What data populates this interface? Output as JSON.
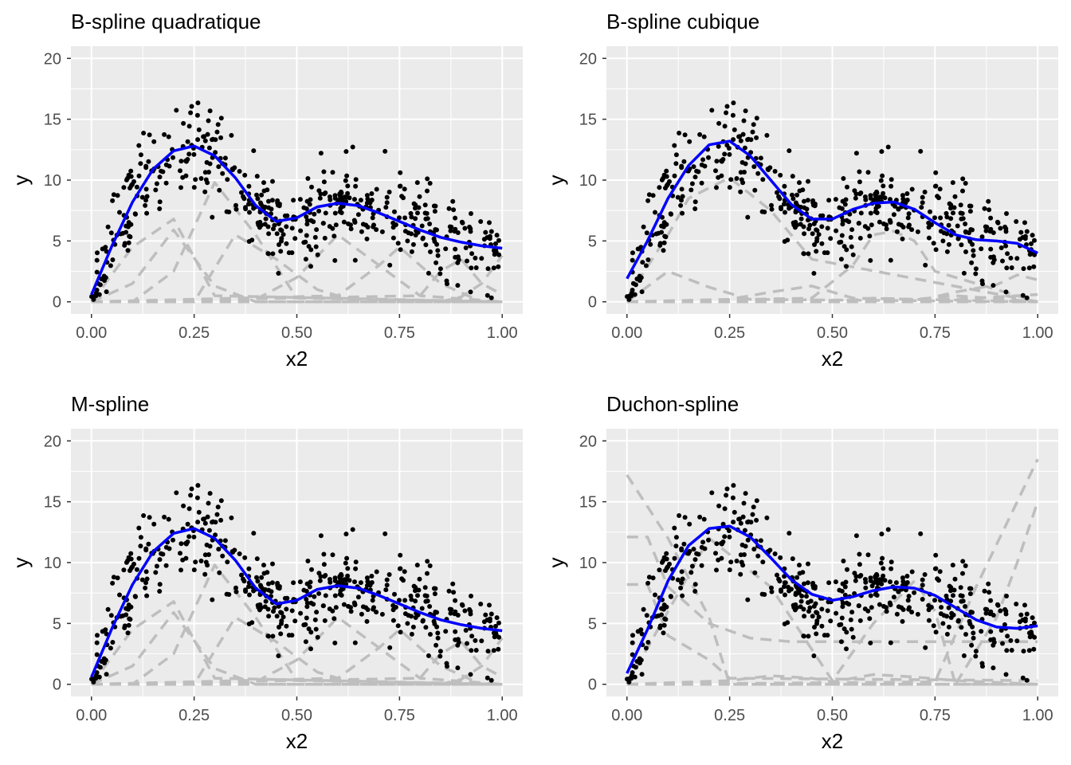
{
  "figure": {
    "layout": "2x2 facet grid"
  },
  "style": {
    "panel_background": "#ebebeb",
    "grid_color": "#ffffff",
    "point_color": "#000000",
    "fit_color": "#0000ff",
    "basis_color": "#bebebe",
    "tick_text_color": "#4d4d4d"
  },
  "chart_data": [
    {
      "type": "scatter",
      "title": "B-spline quadratique",
      "xlabel": "x2",
      "ylabel": "y",
      "xlim": [
        0,
        1
      ],
      "ylim": [
        0,
        20
      ],
      "x_ticks": [
        "0.00",
        "0.25",
        "0.50",
        "0.75",
        "1.00"
      ],
      "y_ticks": [
        "0",
        "5",
        "10",
        "15",
        "20"
      ],
      "grid": true,
      "fit": {
        "x": [
          0,
          0.05,
          0.1,
          0.15,
          0.2,
          0.25,
          0.3,
          0.35,
          0.4,
          0.45,
          0.5,
          0.55,
          0.6,
          0.65,
          0.7,
          0.75,
          0.8,
          0.85,
          0.9,
          0.95,
          1.0
        ],
        "y": [
          0.6,
          4.6,
          8.2,
          10.9,
          12.4,
          12.8,
          12.0,
          10.2,
          7.9,
          6.6,
          6.9,
          7.8,
          8.1,
          7.9,
          7.3,
          6.6,
          5.9,
          5.3,
          4.9,
          4.6,
          4.4
        ]
      },
      "basis": [
        {
          "x": [
            0,
            0.1,
            0.2,
            0.3,
            1.0
          ],
          "y": [
            0,
            4.5,
            6.8,
            0.5,
            0
          ]
        },
        {
          "x": [
            0,
            0.1,
            0.2,
            0.3,
            0.4,
            1.0
          ],
          "y": [
            0,
            1.5,
            5.9,
            1.3,
            0,
            0
          ]
        },
        {
          "x": [
            0,
            0.1,
            0.2,
            0.3,
            0.4,
            0.5,
            1.0
          ],
          "y": [
            0,
            0,
            2.5,
            9.8,
            5.5,
            0.3,
            0
          ]
        },
        {
          "x": [
            0,
            0.25,
            0.35,
            0.45,
            0.55,
            0.65,
            1.0
          ],
          "y": [
            0,
            0,
            5.5,
            3.5,
            1.0,
            0,
            0
          ]
        },
        {
          "x": [
            0,
            0.4,
            0.5,
            0.6,
            0.7,
            0.8,
            1.0
          ],
          "y": [
            0,
            0.2,
            2.0,
            5.5,
            3.0,
            0.5,
            0
          ]
        },
        {
          "x": [
            0,
            0.6,
            0.7,
            0.75,
            0.85,
            0.95,
            1.0
          ],
          "y": [
            0,
            0.5,
            3.0,
            4.5,
            1.5,
            0,
            0
          ]
        },
        {
          "x": [
            0,
            0.8,
            0.85,
            0.9,
            0.95,
            1.0
          ],
          "y": [
            0,
            0.5,
            2.5,
            3.5,
            1.5,
            0.6
          ]
        },
        {
          "x": [
            0,
            0.85,
            0.9,
            0.95,
            1.0
          ],
          "y": [
            0,
            0,
            0.4,
            1.5,
            3.8
          ]
        },
        {
          "x": [
            0,
            0.5,
            1.0
          ],
          "y": [
            0,
            0,
            0
          ]
        }
      ]
    },
    {
      "type": "scatter",
      "title": "B-spline cubique",
      "xlabel": "x2",
      "ylabel": "y",
      "xlim": [
        0,
        1
      ],
      "ylim": [
        0,
        20
      ],
      "x_ticks": [
        "0.00",
        "0.25",
        "0.50",
        "0.75",
        "1.00"
      ],
      "y_ticks": [
        "0",
        "5",
        "10",
        "15",
        "20"
      ],
      "grid": true,
      "fit": {
        "x": [
          0,
          0.05,
          0.1,
          0.15,
          0.2,
          0.25,
          0.3,
          0.35,
          0.4,
          0.45,
          0.5,
          0.55,
          0.6,
          0.65,
          0.7,
          0.75,
          0.8,
          0.85,
          0.9,
          0.95,
          1.0
        ],
        "y": [
          1.9,
          5.0,
          8.5,
          11.2,
          12.9,
          13.2,
          12.0,
          10.0,
          8.0,
          6.8,
          6.8,
          7.6,
          8.1,
          8.2,
          7.6,
          6.5,
          5.5,
          5.1,
          5.0,
          4.8,
          4.0
        ]
      },
      "basis": [
        {
          "x": [
            0,
            0.1,
            0.2,
            0.3,
            1.0
          ],
          "y": [
            0,
            2.5,
            1.2,
            0.2,
            0
          ]
        },
        {
          "x": [
            0,
            0.1,
            0.15,
            0.25,
            0.35,
            0.45,
            1.0
          ],
          "y": [
            0.3,
            5.5,
            8.5,
            10.2,
            7.5,
            3.5,
            0
          ]
        },
        {
          "x": [
            0,
            0.25,
            0.35,
            0.45,
            0.55,
            1.0
          ],
          "y": [
            0,
            0.2,
            0.8,
            1.3,
            0.3,
            0
          ]
        },
        {
          "x": [
            0,
            0.45,
            0.55,
            0.6,
            0.65,
            0.7,
            0.75,
            1.0
          ],
          "y": [
            0,
            0.3,
            3.0,
            5.5,
            5.8,
            5.0,
            2.5,
            0
          ]
        },
        {
          "x": [
            0,
            0.5,
            0.6,
            0.7,
            0.8,
            1.0
          ],
          "y": [
            0,
            0,
            0.3,
            0.2,
            0.5,
            0
          ]
        },
        {
          "x": [
            0,
            0.7,
            0.8,
            0.9,
            0.95,
            1.0
          ],
          "y": [
            0,
            0,
            0.8,
            1.4,
            2.2,
            1.8
          ]
        },
        {
          "x": [
            0,
            0.8,
            0.9,
            1.0
          ],
          "y": [
            0,
            0.2,
            0.4,
            0.6
          ]
        },
        {
          "x": [
            0,
            0.5,
            1.0
          ],
          "y": [
            0,
            0,
            0
          ]
        }
      ]
    },
    {
      "type": "scatter",
      "title": "M-spline",
      "xlabel": "x2",
      "ylabel": "y",
      "xlim": [
        0,
        1
      ],
      "ylim": [
        0,
        20
      ],
      "x_ticks": [
        "0.00",
        "0.25",
        "0.50",
        "0.75",
        "1.00"
      ],
      "y_ticks": [
        "0",
        "5",
        "10",
        "15",
        "20"
      ],
      "grid": true,
      "fit": {
        "x": [
          0,
          0.05,
          0.1,
          0.15,
          0.2,
          0.25,
          0.3,
          0.35,
          0.4,
          0.45,
          0.5,
          0.55,
          0.6,
          0.65,
          0.7,
          0.75,
          0.8,
          0.85,
          0.9,
          0.95,
          1.0
        ],
        "y": [
          0.6,
          4.6,
          8.2,
          10.9,
          12.4,
          12.8,
          12.0,
          10.2,
          7.9,
          6.6,
          6.9,
          7.8,
          8.1,
          7.9,
          7.3,
          6.6,
          5.9,
          5.3,
          4.9,
          4.6,
          4.4
        ]
      },
      "basis": [
        {
          "x": [
            0,
            0.1,
            0.2,
            0.3,
            1.0
          ],
          "y": [
            0,
            4.5,
            6.8,
            0.5,
            0
          ]
        },
        {
          "x": [
            0,
            0.1,
            0.2,
            0.3,
            0.4,
            1.0
          ],
          "y": [
            0,
            1.5,
            5.9,
            1.3,
            0,
            0
          ]
        },
        {
          "x": [
            0,
            0.1,
            0.2,
            0.3,
            0.4,
            0.5,
            1.0
          ],
          "y": [
            0,
            0,
            2.5,
            9.8,
            5.5,
            0.3,
            0
          ]
        },
        {
          "x": [
            0,
            0.25,
            0.35,
            0.45,
            0.55,
            0.65,
            1.0
          ],
          "y": [
            0,
            0,
            5.5,
            3.5,
            1.0,
            0,
            0
          ]
        },
        {
          "x": [
            0,
            0.4,
            0.5,
            0.6,
            0.7,
            0.8,
            1.0
          ],
          "y": [
            0,
            0.2,
            2.0,
            5.5,
            3.0,
            0.5,
            0
          ]
        },
        {
          "x": [
            0,
            0.6,
            0.7,
            0.75,
            0.85,
            0.95,
            1.0
          ],
          "y": [
            0,
            0.5,
            3.0,
            4.5,
            1.5,
            0,
            0
          ]
        },
        {
          "x": [
            0,
            0.8,
            0.85,
            0.9,
            0.95,
            1.0
          ],
          "y": [
            0,
            0.5,
            2.5,
            3.5,
            1.5,
            0.6
          ]
        },
        {
          "x": [
            0,
            0.85,
            0.9,
            0.95,
            1.0
          ],
          "y": [
            0,
            0,
            0.4,
            1.5,
            3.8
          ]
        },
        {
          "x": [
            0,
            0.5,
            1.0
          ],
          "y": [
            0,
            0,
            0
          ]
        }
      ]
    },
    {
      "type": "scatter",
      "title": "Duchon-spline",
      "xlabel": "x2",
      "ylabel": "y",
      "xlim": [
        0,
        1
      ],
      "ylim": [
        0,
        20
      ],
      "x_ticks": [
        "0.00",
        "0.25",
        "0.50",
        "0.75",
        "1.00"
      ],
      "y_ticks": [
        "0",
        "5",
        "10",
        "15",
        "20"
      ],
      "grid": true,
      "fit": {
        "x": [
          0,
          0.05,
          0.1,
          0.15,
          0.2,
          0.25,
          0.3,
          0.35,
          0.4,
          0.45,
          0.5,
          0.55,
          0.6,
          0.65,
          0.7,
          0.75,
          0.8,
          0.85,
          0.9,
          0.95,
          1.0
        ],
        "y": [
          0.9,
          4.5,
          8.5,
          11.4,
          12.8,
          13.0,
          12.1,
          10.4,
          8.6,
          7.4,
          6.9,
          7.2,
          7.7,
          8.0,
          7.9,
          7.3,
          6.3,
          5.3,
          4.7,
          4.6,
          4.8
        ]
      },
      "basis": [
        {
          "x": [
            0,
            0.1,
            0.2,
            0.25,
            0.3,
            1.0
          ],
          "y": [
            17.2,
            12.0,
            5.5,
            0,
            0,
            0
          ]
        },
        {
          "x": [
            0,
            0.05,
            0.1,
            0.2,
            0.3,
            0.4,
            1.0
          ],
          "y": [
            12.1,
            12.1,
            8.0,
            5.0,
            3.8,
            3.5,
            3.5
          ]
        },
        {
          "x": [
            0,
            0.05,
            0.1,
            0.2,
            0.25,
            1.0
          ],
          "y": [
            8.2,
            8.2,
            4.0,
            2.0,
            0.5,
            0.3
          ]
        },
        {
          "x": [
            0,
            0.25,
            0.35,
            0.45,
            0.5,
            0.6,
            0.7,
            0.8,
            1.0
          ],
          "y": [
            0,
            0.3,
            0.7,
            0.5,
            0.2,
            0.8,
            0.6,
            0.3,
            0
          ]
        },
        {
          "x": [
            0,
            0.2,
            0.35,
            0.5,
            0.6,
            0.7,
            0.75,
            0.8,
            1.0
          ],
          "y": [
            0,
            12.0,
            8.0,
            0.3,
            5.0,
            8.5,
            6.0,
            0,
            0
          ]
        },
        {
          "x": [
            0,
            0.75,
            0.85,
            0.95,
            1.0
          ],
          "y": [
            0,
            0.2,
            8.0,
            15.0,
            18.5
          ]
        },
        {
          "x": [
            0,
            0.8,
            0.9,
            0.95,
            1.0
          ],
          "y": [
            0,
            0,
            5.5,
            10.0,
            15.0
          ]
        }
      ]
    }
  ]
}
